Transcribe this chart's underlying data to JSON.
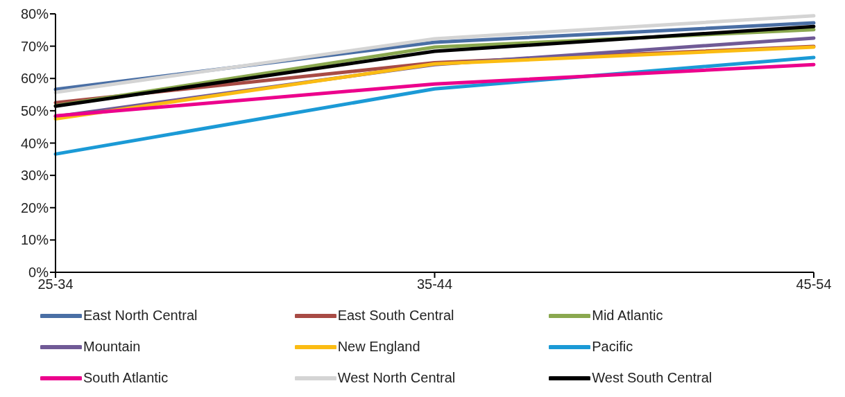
{
  "chart_data": {
    "type": "line",
    "categories": [
      "25-34",
      "35-44",
      "45-54"
    ],
    "series": [
      {
        "name": "East North Central",
        "color": "#4a6fa5",
        "values": [
          56.6,
          71.2,
          77.2
        ]
      },
      {
        "name": "East South Central",
        "color": "#a84b45",
        "values": [
          52.5,
          64.9,
          69.9
        ]
      },
      {
        "name": "Mid Atlantic",
        "color": "#8aa84f",
        "values": [
          51.6,
          69.7,
          75.1
        ]
      },
      {
        "name": "Mountain",
        "color": "#705a96",
        "values": [
          48.2,
          64.3,
          72.5
        ]
      },
      {
        "name": "New England",
        "color": "#fbbc13",
        "values": [
          47.5,
          64.5,
          69.7
        ]
      },
      {
        "name": "Pacific",
        "color": "#1b9ad6",
        "values": [
          36.6,
          56.8,
          66.5
        ]
      },
      {
        "name": "South Atlantic",
        "color": "#ec008c",
        "values": [
          48.4,
          58.3,
          64.3
        ]
      },
      {
        "name": "West North Central",
        "color": "#d4d4d4",
        "values": [
          55.7,
          72.3,
          79.4
        ]
      },
      {
        "name": "West South Central",
        "color": "#000000",
        "values": [
          51.4,
          68.4,
          76.1
        ]
      }
    ],
    "ylim": [
      0,
      80
    ],
    "yticks": [
      {
        "value": 0,
        "label": "0%"
      },
      {
        "value": 10,
        "label": "10%"
      },
      {
        "value": 20,
        "label": "20%"
      },
      {
        "value": 30,
        "label": "30%"
      },
      {
        "value": 40,
        "label": "40%"
      },
      {
        "value": 50,
        "label": "50%"
      },
      {
        "value": 60,
        "label": "60%"
      },
      {
        "value": 70,
        "label": "70%"
      },
      {
        "value": 80,
        "label": "80%"
      }
    ],
    "grid": false,
    "legend": "bottom",
    "marker": "none",
    "line_style": "solid"
  }
}
